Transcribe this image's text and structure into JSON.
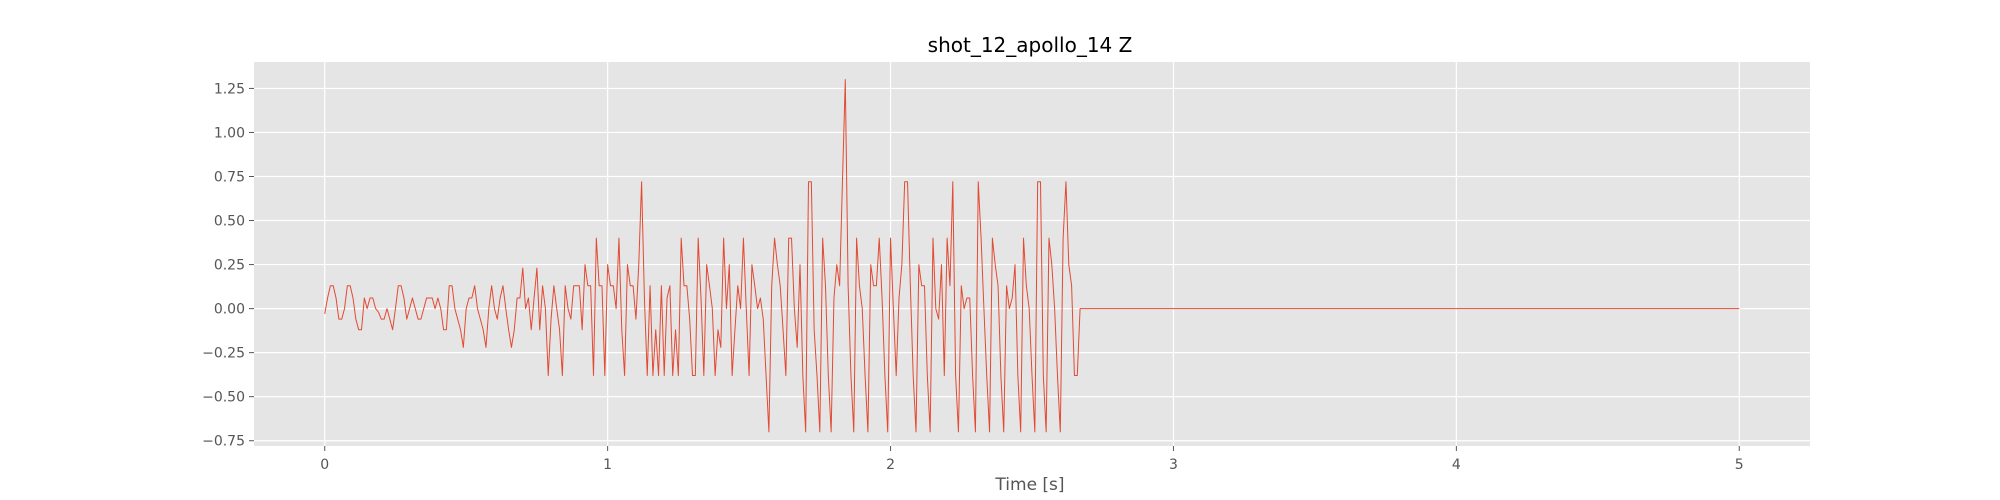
{
  "chart_data": {
    "type": "line",
    "title": "shot_12_apollo_14 Z",
    "xlabel": "Time [s]",
    "ylabel": "",
    "xlim": [
      -0.25,
      5.25
    ],
    "ylim": [
      -0.78,
      1.4
    ],
    "x_ticks": [
      0,
      1,
      2,
      3,
      4,
      5
    ],
    "x_tick_labels": [
      "0",
      "1",
      "2",
      "3",
      "4",
      "5"
    ],
    "y_ticks": [
      1.25,
      1.0,
      0.75,
      0.5,
      0.25,
      0.0,
      -0.25,
      -0.5,
      -0.75
    ],
    "y_tick_labels": [
      "1.25",
      "1.00",
      "0.75",
      "0.50",
      "0.25",
      "0.00",
      "−0.25",
      "−0.50",
      "−0.75"
    ],
    "grid": true,
    "legend": "none",
    "style": {
      "background": "#e5e5e5",
      "grid_color": "#ffffff",
      "line_color": "#e24a33"
    },
    "series": [
      {
        "sample_interval": 0.01,
        "x_start": 0,
        "y_before_2s": [
          -0.03,
          0.06,
          0.13,
          0.13,
          0.06,
          -0.06,
          -0.06,
          0.0,
          0.13,
          0.13,
          0.06,
          -0.06,
          -0.12,
          -0.12,
          0.06,
          0.0,
          0.06,
          0.06,
          0.0,
          -0.02,
          -0.06,
          -0.06,
          0.0,
          -0.06,
          -0.12,
          0.0,
          0.13,
          0.13,
          0.06,
          -0.06,
          0.0,
          0.06,
          0.0,
          -0.06,
          -0.06,
          0.0,
          0.06,
          0.06,
          0.06,
          0.0,
          0.06,
          0.0,
          -0.12,
          -0.12,
          0.13,
          0.13,
          0.0,
          -0.06,
          -0.12,
          -0.22,
          0.0,
          0.06,
          0.06,
          0.13,
          0.0,
          -0.06,
          -0.12,
          -0.22,
          0.0,
          0.13,
          0.0,
          -0.06,
          0.06,
          0.13,
          0.0,
          -0.12,
          -0.22,
          -0.12,
          0.06,
          0.06,
          0.23,
          0.0,
          0.06,
          -0.12,
          0.06,
          0.23,
          -0.12,
          0.13,
          0.0,
          -0.38,
          -0.06,
          0.13,
          0.0,
          -0.12,
          -0.38,
          0.13,
          0.0,
          -0.06,
          0.13,
          0.13,
          0.13,
          -0.12,
          0.25,
          0.13,
          0.13,
          -0.38,
          0.4,
          0.13,
          0.13,
          -0.38,
          0.25,
          0.13,
          0.13,
          0.0,
          0.4,
          -0.12,
          -0.38,
          0.25,
          0.13,
          0.13,
          -0.06,
          0.25,
          0.72,
          0.06,
          -0.38,
          0.13,
          -0.38,
          -0.12,
          -0.38,
          0.13,
          -0.38,
          0.06,
          0.13,
          -0.38,
          -0.12,
          -0.38,
          0.4,
          0.13,
          0.13,
          -0.06,
          -0.38,
          -0.38,
          0.4,
          0.06,
          -0.38,
          0.25,
          0.13,
          0.0,
          -0.38,
          -0.12,
          -0.22,
          0.4,
          0.0,
          0.25,
          -0.38,
          -0.12,
          0.13,
          0.0,
          0.4,
          0.0,
          -0.38,
          0.25,
          0.13,
          0.0,
          0.06,
          -0.06,
          -0.38,
          -0.7,
          0.13,
          0.4,
          0.25,
          0.13,
          -0.12,
          -0.38,
          0.4,
          0.4,
          0.0,
          -0.22,
          0.25,
          -0.38,
          -0.7,
          0.72,
          0.72,
          -0.12,
          -0.38,
          -0.7,
          0.4,
          0.13,
          -0.38,
          -0.7,
          0.06,
          0.25,
          0.13,
          0.72,
          1.3,
          0.13,
          -0.38,
          -0.7,
          0.4,
          0.13,
          0.0,
          -0.38,
          -0.7,
          0.25,
          0.13,
          0.13,
          0.4,
          0.06,
          -0.38,
          -0.7,
          0.4,
          0.0,
          -0.38,
          0.06,
          0.25,
          0.72,
          0.72,
          0.13,
          -0.38,
          -0.7,
          0.25,
          0.13,
          0.13,
          -0.38,
          -0.7,
          0.4,
          0.0,
          -0.06,
          0.25,
          -0.38,
          0.4,
          0.13,
          0.72,
          -0.38,
          -0.7,
          0.13,
          0.0,
          0.06,
          0.06,
          -0.38,
          -0.7,
          0.72,
          0.4,
          0.0,
          -0.38,
          -0.7,
          0.4,
          0.25,
          0.13,
          -0.38,
          -0.7,
          0.13,
          0.0,
          0.06,
          0.25,
          -0.38,
          -0.7,
          0.4,
          0.13,
          0.0,
          -0.38,
          -0.7,
          0.72,
          0.72,
          -0.38,
          -0.7,
          0.4,
          0.25,
          0.0,
          -0.38,
          -0.7,
          0.4,
          0.72,
          0.25,
          0.13,
          -0.38,
          -0.38
        ],
        "y_after_2s": 0.0,
        "x_end": 5.0
      }
    ]
  }
}
